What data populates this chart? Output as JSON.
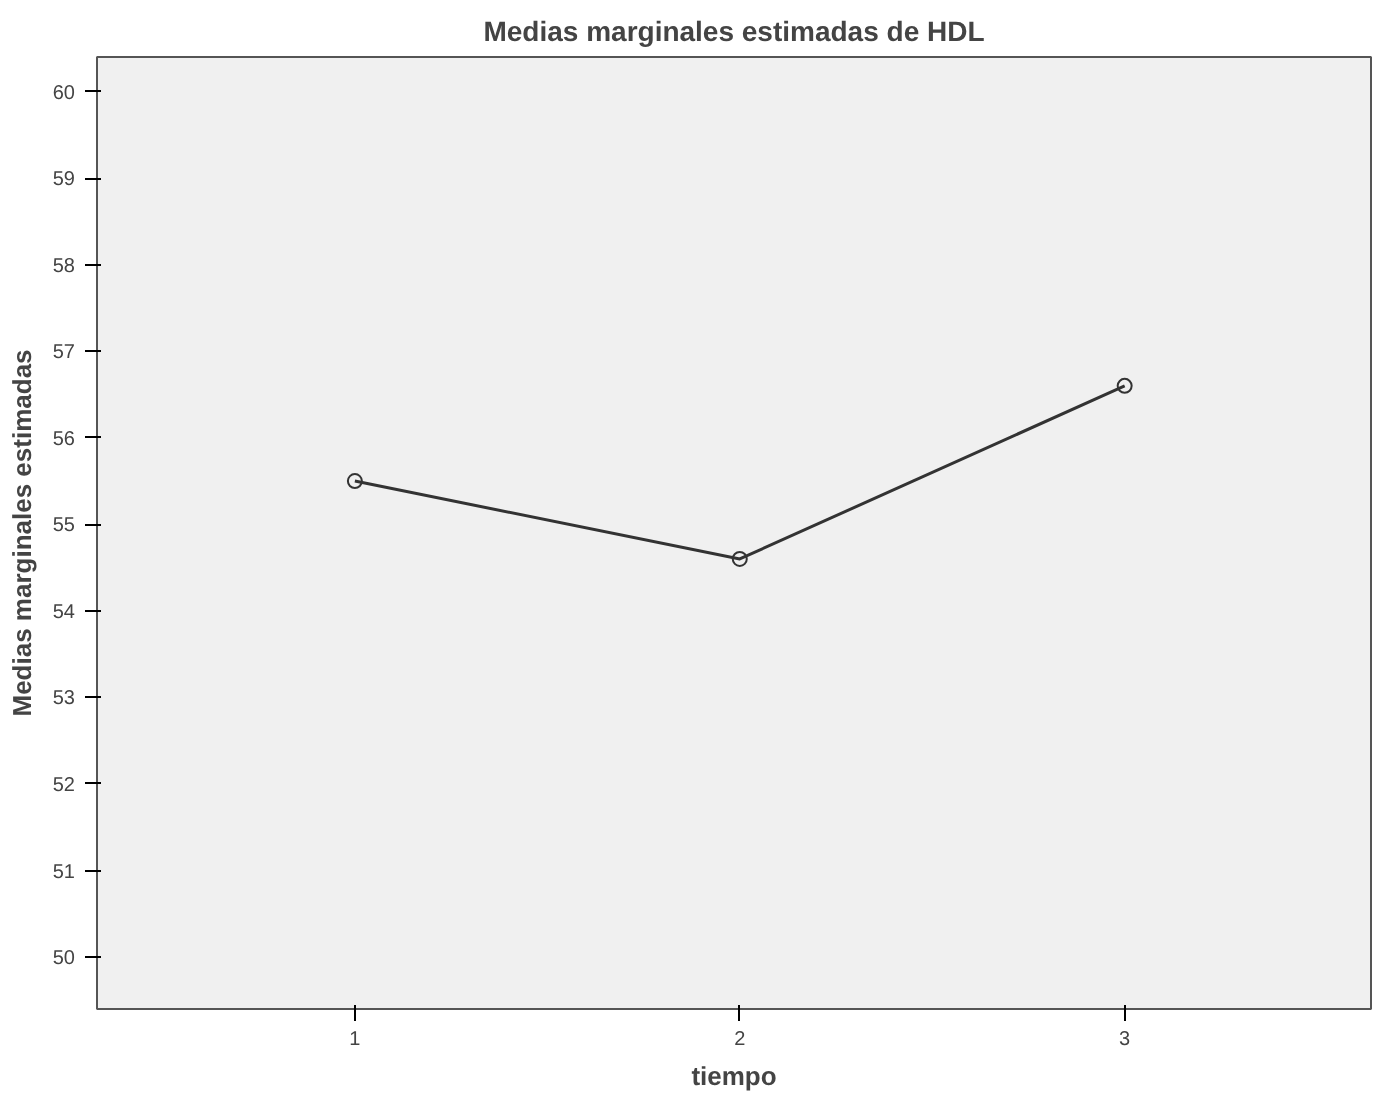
{
  "chart_data": {
    "type": "line",
    "title": "Medias marginales estimadas de HDL",
    "xlabel": "tiempo",
    "ylabel": "Medias marginales estimadas",
    "x": [
      1,
      2,
      3
    ],
    "series": [
      {
        "color": "#333333",
        "values": [
          55.5,
          54.6,
          56.6
        ]
      }
    ],
    "xlim": [
      0.33,
      3.64
    ],
    "xticks": [
      1,
      2,
      3
    ],
    "ylim": [
      49.4,
      60.4
    ],
    "yticks": [
      50,
      51,
      52,
      53,
      54,
      55,
      56,
      57,
      58,
      59,
      60
    ],
    "grid": false,
    "marker": "circle",
    "line_style": "solid"
  }
}
